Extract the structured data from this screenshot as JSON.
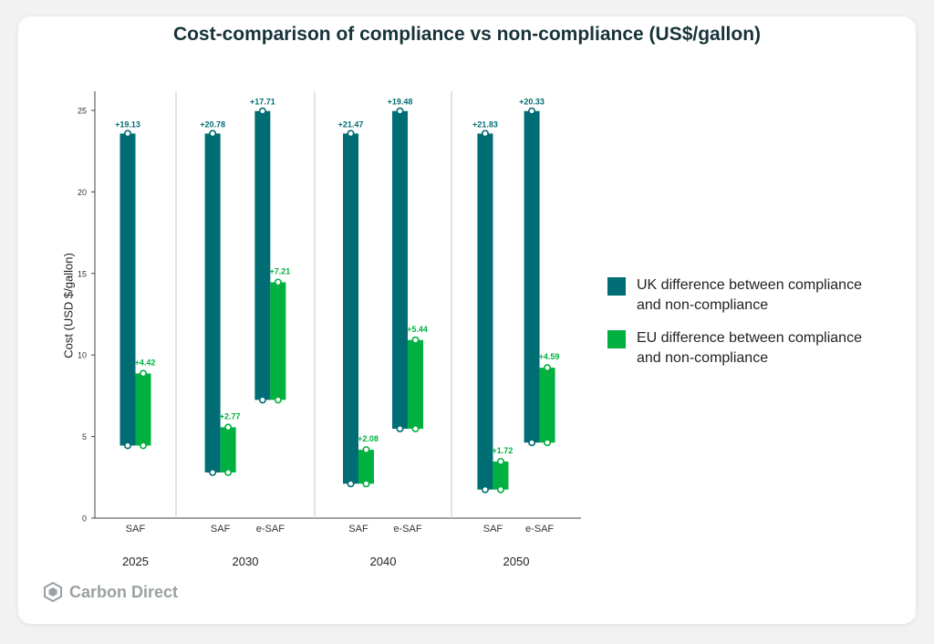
{
  "title": "Cost-comparison of compliance vs non-compliance (US$/gallon)",
  "logo_text": "Carbon Direct",
  "colors": {
    "uk": "#006d75",
    "eu": "#00b140",
    "divider": "#d0d0d0"
  },
  "chart_data": {
    "type": "bar",
    "ylabel": "Cost (USD $/gallon)",
    "ylim": [
      0,
      25
    ],
    "yticks": [
      0,
      5,
      10,
      15,
      20,
      25
    ],
    "legend": [
      {
        "key": "uk",
        "label_line1": "UK difference between compliance",
        "label_line2": "and non-compliance"
      },
      {
        "key": "eu",
        "label_line1": "EU difference between compliance",
        "label_line2": "and non-compliance"
      }
    ],
    "groups": [
      {
        "year": "2025",
        "bars": [
          {
            "fuel": "SAF",
            "uk": {
              "low": 4.45,
              "high": 23.58,
              "label": "+19.13"
            },
            "eu": {
              "low": 4.45,
              "high": 8.87,
              "label": "+4.42"
            }
          }
        ]
      },
      {
        "year": "2030",
        "bars": [
          {
            "fuel": "SAF",
            "uk": {
              "low": 2.8,
              "high": 23.58,
              "label": "+20.78"
            },
            "eu": {
              "low": 2.8,
              "high": 5.57,
              "label": "+2.77"
            }
          },
          {
            "fuel": "e-SAF",
            "uk": {
              "low": 7.25,
              "high": 24.96,
              "label": "+17.71"
            },
            "eu": {
              "low": 7.25,
              "high": 14.46,
              "label": "+7.21"
            }
          }
        ]
      },
      {
        "year": "2040",
        "bars": [
          {
            "fuel": "SAF",
            "uk": {
              "low": 2.11,
              "high": 23.58,
              "label": "+21.47"
            },
            "eu": {
              "low": 2.11,
              "high": 4.19,
              "label": "+2.08"
            }
          },
          {
            "fuel": "e-SAF",
            "uk": {
              "low": 5.48,
              "high": 24.96,
              "label": "+19.48"
            },
            "eu": {
              "low": 5.48,
              "high": 10.92,
              "label": "+5.44"
            }
          }
        ]
      },
      {
        "year": "2050",
        "bars": [
          {
            "fuel": "SAF",
            "uk": {
              "low": 1.75,
              "high": 23.58,
              "label": "+21.83"
            },
            "eu": {
              "low": 1.75,
              "high": 3.47,
              "label": "+1.72"
            }
          },
          {
            "fuel": "e-SAF",
            "uk": {
              "low": 4.63,
              "high": 24.96,
              "label": "+20.33"
            },
            "eu": {
              "low": 4.63,
              "high": 9.22,
              "label": "+4.59"
            }
          }
        ]
      }
    ]
  }
}
